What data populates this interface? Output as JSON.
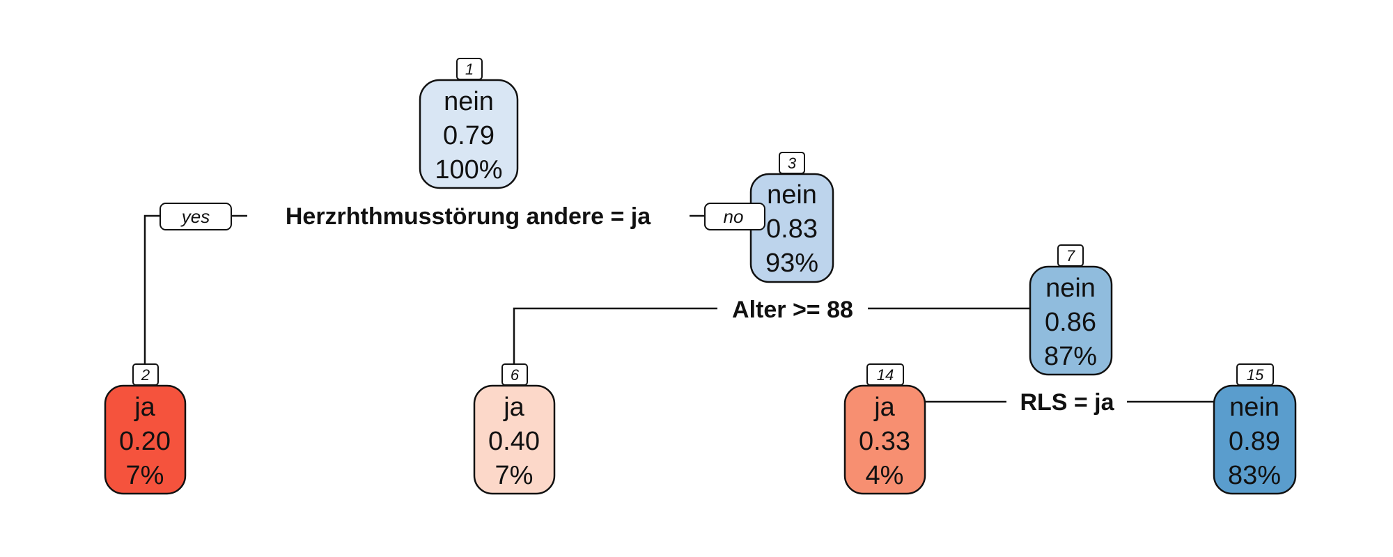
{
  "tree": {
    "nodes": [
      {
        "id": "1",
        "label": "nein",
        "prob": "0.79",
        "pct": "100%",
        "color": "#d9e6f4"
      },
      {
        "id": "3",
        "label": "nein",
        "prob": "0.83",
        "pct": "93%",
        "color": "#bdd4ec"
      },
      {
        "id": "7",
        "label": "nein",
        "prob": "0.86",
        "pct": "87%",
        "color": "#90bcdd"
      },
      {
        "id": "2",
        "label": "ja",
        "prob": "0.20",
        "pct": "7%",
        "color": "#f5533d"
      },
      {
        "id": "6",
        "label": "ja",
        "prob": "0.40",
        "pct": "7%",
        "color": "#fcd8c9"
      },
      {
        "id": "14",
        "label": "ja",
        "prob": "0.33",
        "pct": "4%",
        "color": "#f78f71"
      },
      {
        "id": "15",
        "label": "nein",
        "prob": "0.89",
        "pct": "83%",
        "color": "#5a9dcd"
      }
    ],
    "splits": [
      {
        "label": "Herzrhthmusstörung andere = ja"
      },
      {
        "label": "Alter >= 88"
      },
      {
        "label": "RLS = ja"
      }
    ],
    "branch_labels": {
      "yes": "yes",
      "no": "no"
    }
  }
}
